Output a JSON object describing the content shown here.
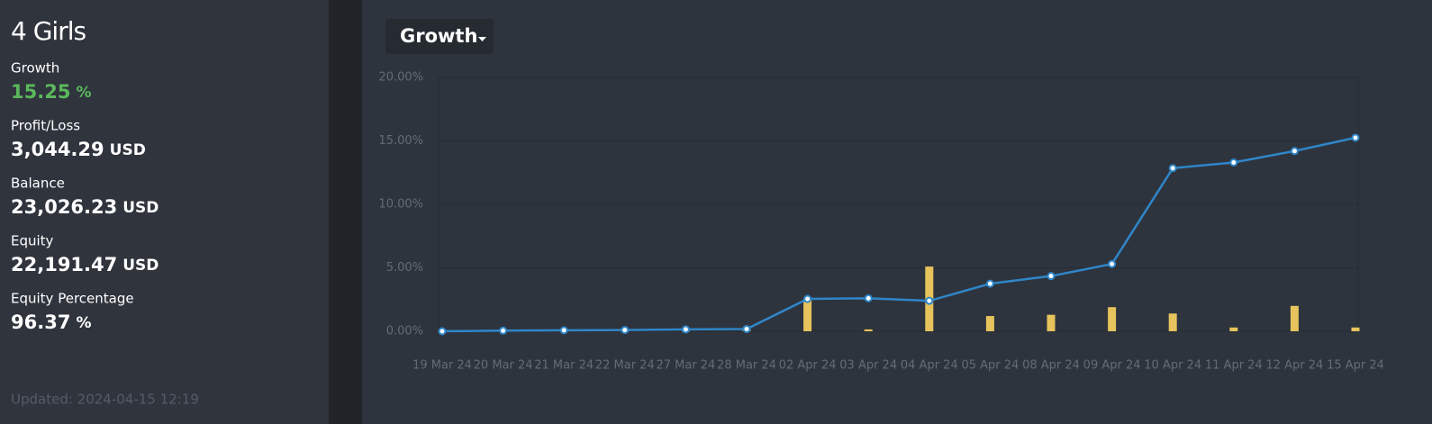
{
  "sidebar": {
    "title": "4 Girls",
    "stats": [
      {
        "label": "Growth",
        "value": "15.25",
        "unit": "%"
      },
      {
        "label": "Profit/Loss",
        "value": "3,044.29",
        "unit": "USD"
      },
      {
        "label": "Balance",
        "value": "23,026.23",
        "unit": "USD"
      },
      {
        "label": "Equity",
        "value": "22,191.47",
        "unit": "USD"
      },
      {
        "label": "Equity Percentage",
        "value": "96.37",
        "unit": "%"
      }
    ],
    "updated": "Updated: 2024-04-15 12:19"
  },
  "selector": "Growth",
  "chart_data": {
    "type": "line-bar",
    "categories": [
      "19 Mar 24",
      "20 Mar 24",
      "21 Mar 24",
      "22 Mar 24",
      "27 Mar 24",
      "28 Mar 24",
      "02 Apr 24",
      "03 Apr 24",
      "04 Apr 24",
      "05 Apr 24",
      "08 Apr 24",
      "09 Apr 24",
      "10 Apr 24",
      "11 Apr 24",
      "12 Apr 24",
      "15 Apr 24"
    ],
    "series": [
      {
        "type": "line",
        "color": "#2f86c9",
        "values": [
          0,
          0.05,
          0.08,
          0.1,
          0.15,
          0.18,
          2.55,
          2.6,
          2.4,
          3.75,
          4.35,
          5.3,
          12.85,
          13.3,
          14.2,
          15.25
        ]
      },
      {
        "type": "bar",
        "color": "#e6c35c",
        "values": [
          0.05,
          0.05,
          0.05,
          0.05,
          0.05,
          0.1,
          2.6,
          0.15,
          5.1,
          1.2,
          1.3,
          1.9,
          1.4,
          0.3,
          2.0,
          0.3
        ]
      }
    ],
    "ylim": [
      0,
      20
    ],
    "yticks": [
      {
        "value": 0,
        "label": "0.00%"
      },
      {
        "value": 5,
        "label": "5.00%"
      },
      {
        "value": 10,
        "label": "10.00%"
      },
      {
        "value": 15,
        "label": "15.00%"
      },
      {
        "value": 20,
        "label": "20.00%"
      }
    ],
    "grid": true
  }
}
